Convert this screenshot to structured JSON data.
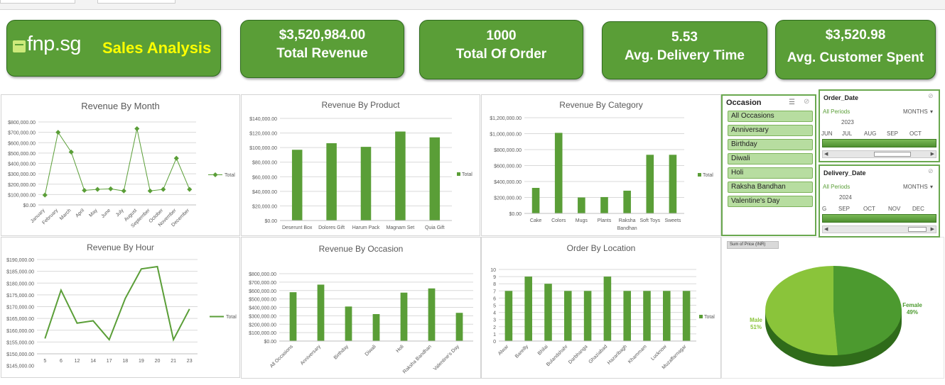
{
  "brand": {
    "logo_text": "fnp.sg",
    "title": "Sales Analysis"
  },
  "kpis": [
    {
      "value": "$3,520,984.00",
      "label": "Total Revenue"
    },
    {
      "value": "1000",
      "label": "Total Of Order"
    },
    {
      "value": "5.53",
      "label": "Avg. Delivery Time"
    },
    {
      "value": "$3,520.98",
      "label": "Avg. Customer Spent"
    }
  ],
  "colors": {
    "kpi_fill": "#5a9e37",
    "bar": "#5a9e37",
    "line": "#5a9e37",
    "brand_title": "#ffff00"
  },
  "legend_label": "Total",
  "chart_data": [
    {
      "id": "month",
      "type": "line",
      "title": "Revenue By Month",
      "categories": [
        "January",
        "February",
        "March",
        "April",
        "May",
        "June",
        "July",
        "August",
        "September",
        "October",
        "November",
        "December"
      ],
      "values": [
        95000,
        700000,
        510000,
        140000,
        150000,
        155000,
        135000,
        735000,
        135000,
        150000,
        450000,
        150000
      ],
      "ylim": [
        0,
        800000
      ],
      "yticks": [
        "$0.00",
        "$100,000.00",
        "$200,000.00",
        "$300,000.00",
        "$400,000.00",
        "$500,000.00",
        "$600,000.00",
        "$700,000.00",
        "$800,000.00"
      ],
      "grid": true,
      "legend": "right"
    },
    {
      "id": "product",
      "type": "bar",
      "title": "Revenue By Product",
      "categories": [
        "Deserunt Box",
        "Dolores Gift",
        "Harum Pack",
        "Magnam Set",
        "Quia Gift"
      ],
      "values": [
        97000,
        106000,
        101000,
        122000,
        114000
      ],
      "ylim": [
        0,
        140000
      ],
      "yticks": [
        "$0.00",
        "$20,000.00",
        "$40,000.00",
        "$60,000.00",
        "$80,000.00",
        "$100,000.00",
        "$120,000.00",
        "$140,000.00"
      ],
      "grid": true,
      "legend": "right"
    },
    {
      "id": "category",
      "type": "bar",
      "title": "Revenue By Category",
      "categories": [
        "Cake",
        "Colors",
        "Mugs",
        "Plants",
        "Raksha Bandhan",
        "Soft Toys",
        "Sweets"
      ],
      "values": [
        320000,
        1010000,
        200000,
        205000,
        285000,
        735000,
        735000
      ],
      "ylim": [
        0,
        1200000
      ],
      "yticks": [
        "$0.00",
        "$200,000.00",
        "$400,000.00",
        "$600,000.00",
        "$800,000.00",
        "$1,000,000.00",
        "$1,200,000.00"
      ],
      "grid": true,
      "legend": "right"
    },
    {
      "id": "hour",
      "type": "line",
      "title": "Revenue By Hour",
      "categories": [
        "5",
        "6",
        "12",
        "14",
        "17",
        "18",
        "19",
        "20",
        "21",
        "23"
      ],
      "values": [
        156500,
        177000,
        163000,
        164000,
        156000,
        173500,
        186000,
        187000,
        156000,
        169000
      ],
      "ylim": [
        150000,
        190000
      ],
      "yticks": [
        "$150,000.00",
        "$155,000.00",
        "$160,000.00",
        "$165,000.00",
        "$170,000.00",
        "$175,000.00",
        "$180,000.00",
        "$185,000.00",
        "$190,000.00"
      ],
      "extra_ytick": "$145,000.00",
      "grid": true,
      "legend": "right"
    },
    {
      "id": "occasion",
      "type": "bar",
      "title": "Revenue By Occasion",
      "categories": [
        "All Occasions",
        "Anniversary",
        "Birthday",
        "Diwali",
        "Holi",
        "Raksha Bandhan",
        "Valentine's Day"
      ],
      "values": [
        580000,
        670000,
        410000,
        320000,
        575000,
        625000,
        335000
      ],
      "ylim": [
        0,
        800000
      ],
      "yticks": [
        "$0.00",
        "$100,000.00",
        "$200,000.00",
        "$300,000.00",
        "$400,000.00",
        "$500,000.00",
        "$600,000.00",
        "$700,000.00",
        "$800,000.00"
      ],
      "grid": true,
      "legend": "none"
    },
    {
      "id": "location",
      "type": "bar",
      "title": "Order By Location",
      "categories": [
        "Alwar",
        "Bareilly",
        "Bhilai",
        "Bulandshahr",
        "Darbhanga",
        "Ghaziabad",
        "Hazaribagh",
        "Khammam",
        "Lucknow",
        "Muzaffarnagar"
      ],
      "values": [
        7,
        9,
        8,
        7,
        7,
        9,
        7,
        7,
        7,
        7
      ],
      "ylim": [
        0,
        10
      ],
      "yticks": [
        "0",
        "1",
        "2",
        "3",
        "4",
        "5",
        "6",
        "7",
        "8",
        "9",
        "10"
      ],
      "grid": true,
      "legend": "right"
    },
    {
      "id": "gender",
      "type": "pie",
      "field_button": "Sum of Price (INR)",
      "slices": [
        {
          "name": "Female",
          "pct": "49%",
          "value": 49,
          "color": "#4c9a2f"
        },
        {
          "name": "Male",
          "pct": "51%",
          "value": 51,
          "color": "#8ac43a"
        }
      ]
    }
  ],
  "slicer_occasion": {
    "title": "Occasion",
    "items": [
      "All Occasions",
      "Anniversary",
      "Birthday",
      "Diwali",
      "Holi",
      "Raksha Bandhan",
      "Valentine's Day"
    ]
  },
  "timeline_order": {
    "title": "Order_Date",
    "period": "All Periods",
    "unit": "MONTHS",
    "year": "2023",
    "months": [
      "JUN",
      "JUL",
      "AUG",
      "SEP",
      "OCT"
    ]
  },
  "timeline_delivery": {
    "title": "Delivery_Date",
    "period": "All Periods",
    "unit": "MONTHS",
    "year": "2024",
    "months": [
      "G",
      "SEP",
      "OCT",
      "NOV",
      "DEC"
    ]
  }
}
